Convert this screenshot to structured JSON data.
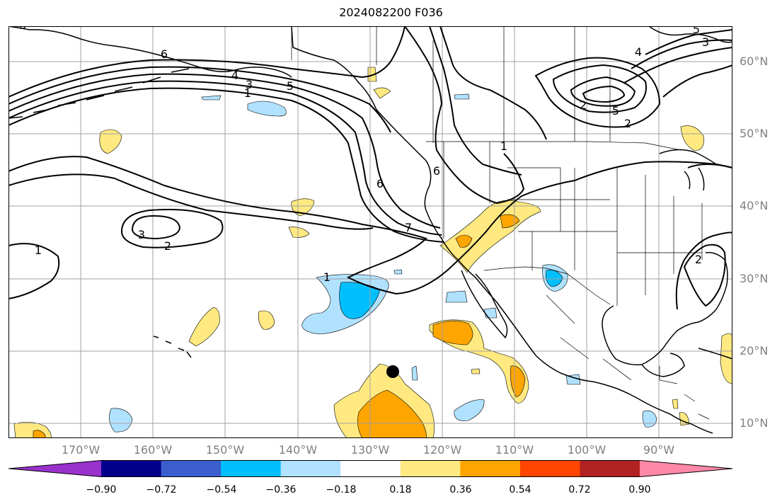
{
  "title": "2024082200 F036",
  "latitude_labels": [
    "60°N",
    "50°N",
    "40°N",
    "30°N",
    "20°N",
    "10°N"
  ],
  "longitude_labels": [
    "170°W",
    "160°W",
    "150°W",
    "140°W",
    "130°W",
    "120°W",
    "110°W",
    "100°W",
    "90°W"
  ],
  "colorbar": {
    "colors": [
      "#9932cc",
      "#00008b",
      "#3a5fcd",
      "#00bfff",
      "#b0e2ff",
      "#ffffff",
      "#ffe980",
      "#ffa500",
      "#ff4500",
      "#b22222",
      "#ff88a8"
    ],
    "tick_labels": [
      "−0.90",
      "−0.72",
      "−0.54",
      "−0.36",
      "−0.18",
      "0.18",
      "0.36",
      "0.54",
      "0.72",
      "0.90"
    ]
  },
  "contour_labels": [
    "6",
    "4",
    "3",
    "5",
    "1",
    "6",
    "7",
    "6",
    "5",
    "2",
    "1",
    "3",
    "2",
    "1",
    "2",
    "3",
    "5",
    "4",
    "1",
    "2",
    "6"
  ],
  "storm_center_marker": "filled-circle"
}
